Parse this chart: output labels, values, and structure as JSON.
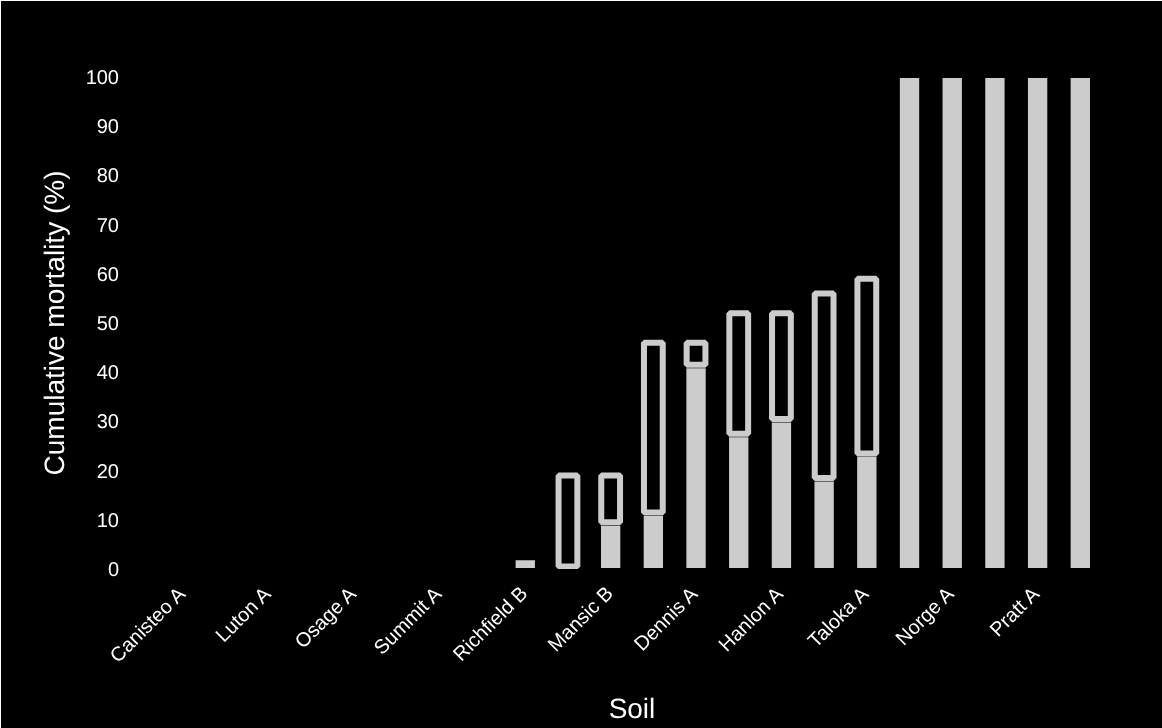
{
  "chart_data": {
    "type": "bar",
    "stacked": true,
    "xlabel": "Soil",
    "ylabel": "Cumulative mortality (%)",
    "categories": [
      "Canisteo A",
      null,
      "Luton A",
      null,
      "Osage A",
      null,
      "Summit A",
      null,
      "Richfield B",
      null,
      "Mansic B",
      null,
      "Dennis A",
      null,
      "Hanlon A",
      null,
      "Taloka A",
      null,
      "Norge A",
      null,
      "Pratt A",
      null
    ],
    "series": [
      {
        "color": "#cccccc",
        "values": [
          0,
          0,
          0,
          0,
          0,
          0,
          0,
          0,
          2,
          0,
          9,
          11,
          41,
          27,
          30,
          18,
          23,
          100,
          100,
          100,
          100,
          100
        ]
      },
      {
        "color": "#cccccc",
        "values": [
          0,
          0,
          0,
          0,
          0,
          0,
          0,
          0,
          0,
          19,
          10,
          35,
          5,
          25,
          22,
          38,
          36,
          0,
          0,
          0,
          0,
          0
        ]
      }
    ],
    "ylim": [
      0,
      100
    ],
    "yticks": [
      0,
      10,
      20,
      30,
      40,
      50,
      60,
      70,
      80,
      90,
      100
    ],
    "grid": false
  }
}
